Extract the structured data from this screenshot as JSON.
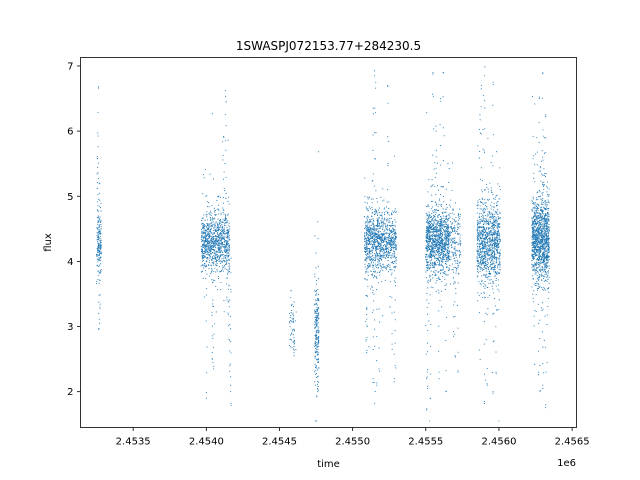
{
  "chart_data": {
    "type": "scatter",
    "title": "1SWASPJ072153.77+284230.5",
    "xlabel": "time",
    "ylabel": "flux",
    "x_offset_label": "1e6",
    "xlim": [
      2453140,
      2456530
    ],
    "ylim": [
      1.45,
      7.13
    ],
    "x_ticks": [
      2453500,
      2454000,
      2454500,
      2455000,
      2455500,
      2456000,
      2456500
    ],
    "x_tick_labels": [
      "2.4535",
      "2.4540",
      "2.4545",
      "2.4550",
      "2.4555",
      "2.4560",
      "2.4565"
    ],
    "y_ticks": [
      2,
      3,
      4,
      5,
      6,
      7
    ],
    "y_tick_labels": [
      "2",
      "3",
      "4",
      "5",
      "6",
      "7"
    ],
    "grid": false,
    "marker_color": "#1f77b4",
    "clusters": [
      {
        "x_start": 2453250,
        "x_end": 2453282,
        "center": 4.3,
        "spread": 0.22,
        "n": 160,
        "extremes": [
          [
            2453262,
            6.68
          ],
          [
            2453258,
            5.97
          ],
          [
            2453255,
            5.58
          ],
          [
            2453268,
            5.2
          ],
          [
            2453270,
            3.05
          ],
          [
            2453266,
            2.97
          ],
          [
            2453272,
            3.3
          ]
        ]
      },
      {
        "x_start": 2453965,
        "x_end": 2454160,
        "center": 4.3,
        "spread": 0.22,
        "n": 950,
        "extremes": [
          [
            2454130,
            6.62
          ],
          [
            2454135,
            6.45
          ],
          [
            2454120,
            5.9
          ],
          [
            2454140,
            3.45
          ],
          [
            2454150,
            3.18
          ],
          [
            2454155,
            2.8
          ],
          [
            2454160,
            2.4
          ],
          [
            2454165,
            2.0
          ],
          [
            2454168,
            1.82
          ],
          [
            2454040,
            2.6
          ],
          [
            2454045,
            2.45
          ],
          [
            2454050,
            2.35
          ],
          [
            2454000,
            1.9
          ]
        ]
      },
      {
        "x_start": 2454565,
        "x_end": 2454615,
        "center": 2.95,
        "spread": 0.18,
        "n": 45,
        "extremes": [
          [
            2454580,
            3.55
          ],
          [
            2454600,
            2.55
          ]
        ]
      },
      {
        "x_start": 2454740,
        "x_end": 2454770,
        "center": 2.9,
        "spread": 0.38,
        "n": 200,
        "extremes": [
          [
            2454752,
            3.65
          ],
          [
            2454755,
            1.92
          ],
          [
            2454760,
            2.05
          ]
        ]
      },
      {
        "x_start": 2455080,
        "x_end": 2455215,
        "center": 4.3,
        "spread": 0.25,
        "n": 700,
        "extremes": [
          [
            2455150,
            6.85
          ],
          [
            2455158,
            6.75
          ],
          [
            2455140,
            6.35
          ],
          [
            2455100,
            3.0
          ],
          [
            2455092,
            2.8
          ],
          [
            2455096,
            2.6
          ],
          [
            2455150,
            1.82
          ],
          [
            2455140,
            2.2
          ],
          [
            2455165,
            2.1
          ],
          [
            2455180,
            2.35
          ]
        ]
      },
      {
        "x_start": 2455215,
        "x_end": 2455300,
        "center": 4.3,
        "spread": 0.22,
        "n": 330,
        "extremes": [
          [
            2455240,
            6.7
          ],
          [
            2455255,
            3.3
          ],
          [
            2455270,
            2.65
          ],
          [
            2455290,
            2.4
          ],
          [
            2455285,
            2.2
          ]
        ]
      },
      {
        "x_start": 2455500,
        "x_end": 2455660,
        "center": 4.3,
        "spread": 0.25,
        "n": 1100,
        "extremes": [
          [
            2455550,
            6.9
          ],
          [
            2455620,
            6.9
          ],
          [
            2455600,
            6.5
          ],
          [
            2455570,
            6.0
          ],
          [
            2455510,
            2.3
          ],
          [
            2455512,
            2.05
          ],
          [
            2455505,
            1.72
          ],
          [
            2455530,
            1.9
          ],
          [
            2455590,
            2.3
          ],
          [
            2455640,
            2.0
          ]
        ]
      },
      {
        "x_start": 2455660,
        "x_end": 2455740,
        "center": 4.3,
        "spread": 0.25,
        "n": 180,
        "extremes": [
          [
            2455700,
            2.55
          ],
          [
            2455720,
            2.3
          ],
          [
            2455690,
            2.85
          ]
        ]
      },
      {
        "x_start": 2455850,
        "x_end": 2456010,
        "center": 4.3,
        "spread": 0.32,
        "n": 1000,
        "extremes": [
          [
            2455880,
            6.7
          ],
          [
            2455900,
            6.85
          ],
          [
            2455960,
            6.75
          ],
          [
            2455870,
            6.25
          ],
          [
            2455960,
            2.0
          ],
          [
            2455980,
            2.3
          ],
          [
            2455900,
            1.85
          ],
          [
            2455920,
            2.1
          ]
        ]
      },
      {
        "x_start": 2456225,
        "x_end": 2456345,
        "center": 4.35,
        "spread": 0.32,
        "n": 1200,
        "extremes": [
          [
            2456300,
            6.88
          ],
          [
            2456275,
            6.5
          ],
          [
            2456320,
            6.25
          ],
          [
            2456310,
            5.9
          ],
          [
            2456270,
            2.3
          ],
          [
            2456320,
            1.8
          ],
          [
            2456300,
            2.1
          ],
          [
            2456280,
            2.0
          ]
        ]
      }
    ]
  }
}
